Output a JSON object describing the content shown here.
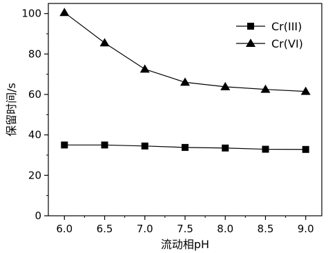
{
  "chart_data": {
    "type": "line",
    "xlabel": "流动相pH",
    "ylabel": "保留时间/s",
    "x": [
      6.0,
      6.5,
      7.0,
      7.5,
      8.0,
      8.5,
      9.0
    ],
    "x_tick_labels": [
      "6.0",
      "6.5",
      "7.0",
      "7.5",
      "8.0",
      "8.5",
      "9.0"
    ],
    "y_ticks": [
      "0",
      "20",
      "40",
      "60",
      "80",
      "100"
    ],
    "xlim": [
      5.8,
      9.2
    ],
    "ylim": [
      0,
      105
    ],
    "grid": false,
    "legend_position": "top-right",
    "series": [
      {
        "name": "Cr(III)",
        "marker": "square",
        "values": [
          35.0,
          35.0,
          34.5,
          33.8,
          33.5,
          32.9,
          32.8
        ]
      },
      {
        "name": "Cr(VI)",
        "marker": "triangle",
        "values": [
          100.5,
          85.5,
          72.5,
          66.0,
          63.8,
          62.5,
          61.5
        ]
      }
    ]
  }
}
